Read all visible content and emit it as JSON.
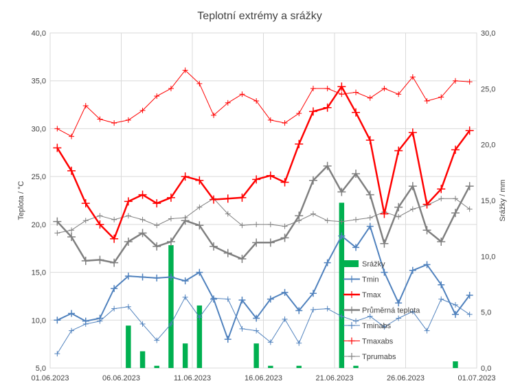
{
  "chart_data": {
    "type": "line",
    "title": "Teplotní extrémy a srážky",
    "ylabel": "Teplota / °C",
    "y2label": "Srážky / mm",
    "ylim": [
      5,
      40
    ],
    "y2lim": [
      0,
      30
    ],
    "yticks": [
      "5,0",
      "10,0",
      "15,0",
      "20,0",
      "25,0",
      "30,0",
      "35,0",
      "40,0"
    ],
    "y2ticks": [
      "0,0",
      "5,0",
      "10,0",
      "15,0",
      "20,0",
      "25,0",
      "30,0"
    ],
    "xticks": [
      "01.06.2023",
      "06.06.2023",
      "11.06.2023",
      "16.06.2023",
      "21.06.2023",
      "26.06.2023",
      "01.07.2023"
    ],
    "grid": true,
    "legend_position": "right",
    "colors": {
      "bars": "#00b050",
      "tmin": "#4f81bd",
      "tmax": "#ff0000",
      "avg": "#7f7f7f",
      "grid": "#d9d9d9"
    },
    "series": [
      {
        "name": "Srážky",
        "kind": "bar",
        "axis": "y2",
        "values": [
          0,
          0,
          0,
          0,
          0,
          3.8,
          1.5,
          0.2,
          11,
          2.2,
          5.6,
          0,
          0,
          0,
          2.2,
          0.2,
          0,
          0.2,
          0,
          0,
          14.8,
          0.2,
          0,
          0,
          0,
          0,
          0,
          0,
          0.6,
          0,
          0
        ]
      },
      {
        "name": "Tmin",
        "kind": "line",
        "axis": "y",
        "values": [
          10.0,
          10.7,
          9.9,
          10.2,
          13.3,
          14.6,
          14.5,
          14.4,
          14.5,
          14.1,
          15.0,
          12.2,
          8.0,
          12.1,
          10.2,
          12.2,
          12.9,
          11.0,
          12.8,
          16.0,
          18.8,
          17.6,
          19.8,
          15.0,
          11.8,
          15.2,
          15.8,
          13.7,
          10.6,
          12.6
        ]
      },
      {
        "name": "Tmax",
        "kind": "line",
        "axis": "y",
        "values": [
          28.0,
          25.6,
          22.2,
          20.0,
          18.5,
          22.4,
          23.1,
          22.2,
          22.8,
          25.0,
          24.6,
          22.6,
          22.7,
          22.8,
          24.7,
          25.1,
          24.4,
          28.4,
          31.8,
          32.2,
          34.4,
          31.7,
          28.8,
          21.1,
          27.7,
          29.6,
          22.1,
          23.7,
          27.8,
          29.8
        ]
      },
      {
        "name": "Průměrná teplota",
        "kind": "line",
        "axis": "y",
        "values": [
          20.3,
          18.7,
          16.2,
          16.3,
          16.0,
          18.2,
          19.1,
          17.7,
          18.2,
          20.4,
          19.9,
          17.7,
          17.0,
          16.4,
          18.1,
          18.1,
          18.6,
          20.9,
          24.6,
          26.1,
          23.4,
          25.3,
          23.1,
          18.0,
          21.8,
          24.0,
          19.4,
          18.2,
          21.2,
          24.0
        ]
      },
      {
        "name": "Tminabs",
        "kind": "line",
        "axis": "y",
        "values": [
          6.5,
          8.9,
          9.6,
          9.9,
          11.2,
          11.4,
          9.6,
          7.9,
          9.6,
          12.4,
          10.3,
          12.3,
          12.2,
          9.1,
          8.9,
          7.7,
          10.1,
          7.6,
          11.1,
          11.2,
          10.4,
          9.9,
          10.4,
          9.3,
          10.2,
          10.9,
          8.9,
          12.2,
          11.6,
          10.6
        ]
      },
      {
        "name": "Tmaxabs",
        "kind": "line",
        "axis": "y",
        "values": [
          30.0,
          29.2,
          32.4,
          31.0,
          30.6,
          30.9,
          31.9,
          33.4,
          34.2,
          36.1,
          34.7,
          31.4,
          32.7,
          33.6,
          32.9,
          30.9,
          30.6,
          31.6,
          34.2,
          34.2,
          33.6,
          33.8,
          33.2,
          34.2,
          33.6,
          35.4,
          32.9,
          33.3,
          35.0,
          34.9
        ]
      },
      {
        "name": "Tprumabs",
        "kind": "line",
        "axis": "y",
        "values": [
          19.1,
          19.4,
          20.4,
          20.9,
          20.5,
          20.9,
          20.5,
          19.9,
          20.6,
          20.7,
          21.8,
          22.7,
          21.1,
          19.9,
          20.0,
          20.0,
          19.8,
          20.4,
          21.1,
          20.4,
          20.3,
          20.5,
          20.7,
          21.3,
          20.8,
          21.6,
          22.0,
          22.7,
          22.7,
          21.6
        ]
      }
    ]
  }
}
